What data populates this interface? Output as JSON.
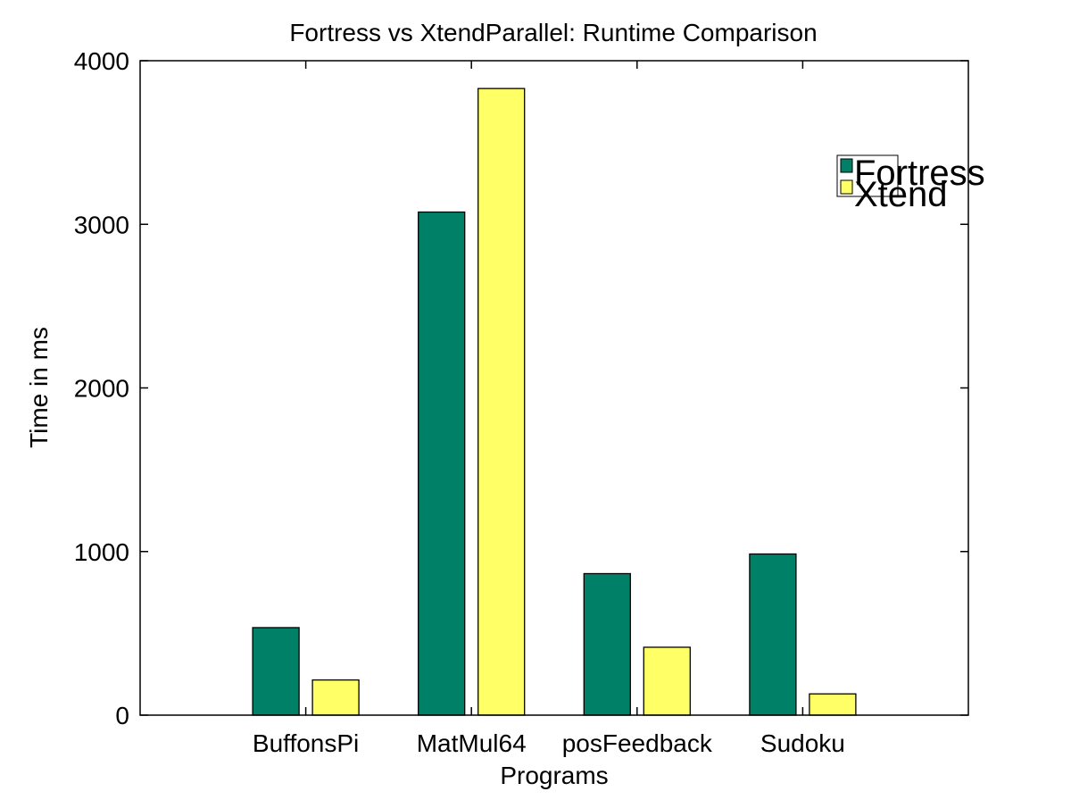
{
  "chart_data": {
    "type": "bar",
    "title": "Fortress vs XtendParallel: Runtime Comparison",
    "xlabel": "Programs",
    "ylabel": "Time in ms",
    "categories": [
      "BuffonsPi",
      "MatMul64",
      "posFeedback",
      "Sudoku"
    ],
    "series": [
      {
        "name": "Fortress",
        "color": "#008066",
        "values": [
          535,
          3075,
          865,
          985
        ]
      },
      {
        "name": "Xtend",
        "color": "#ffff66",
        "values": [
          215,
          3830,
          415,
          130
        ]
      }
    ],
    "ylim": [
      0,
      4000
    ],
    "yticks": [
      0,
      1000,
      2000,
      3000,
      4000
    ],
    "grid": false,
    "legend_position": "top-right"
  }
}
